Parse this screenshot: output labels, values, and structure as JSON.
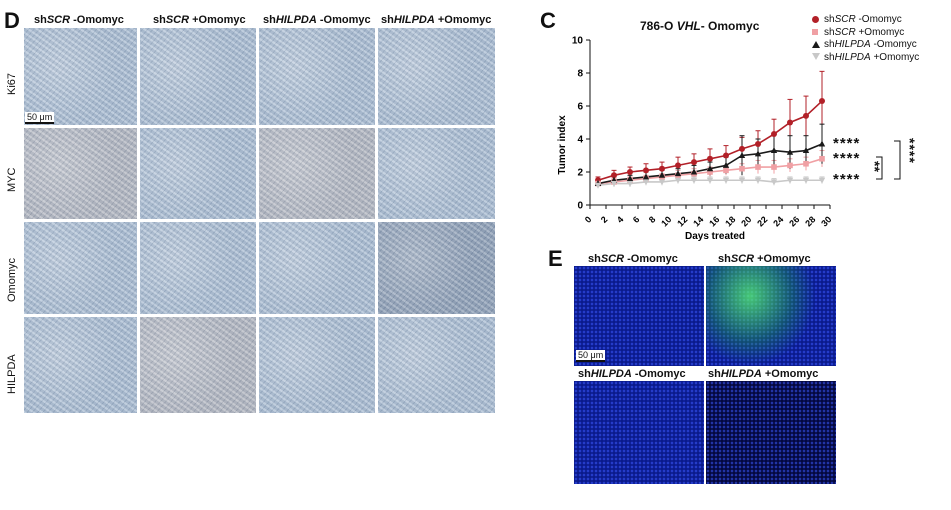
{
  "panel_d": {
    "letter": "D",
    "columns": [
      {
        "prefix": "sh",
        "gene": "SCR",
        "suffix": " -Omomyc"
      },
      {
        "prefix": "sh",
        "gene": "SCR",
        "suffix": " +Omomyc"
      },
      {
        "prefix": "sh",
        "gene": "HILPDA",
        "suffix": " -Omomyc"
      },
      {
        "prefix": "sh",
        "gene": "HILPDA",
        "suffix": " +Omomyc"
      }
    ],
    "rows": [
      "Ki67",
      "MYC",
      "Omomyc",
      "HILPDA"
    ],
    "scale_bar": "50 μm"
  },
  "panel_c": {
    "letter": "C",
    "legend": [
      {
        "prefix": "sh",
        "gene": "SCR",
        "suffix": " -Omomyc",
        "color": "#b22028",
        "marker": "circle"
      },
      {
        "prefix": "sh",
        "gene": "SCR",
        "suffix": " +Omomyc",
        "color": "#f0a0a4",
        "marker": "square"
      },
      {
        "prefix": "sh",
        "gene": "HILPDA",
        "suffix": " -Omomyc",
        "color": "#1a1a1a",
        "marker": "triangle"
      },
      {
        "prefix": "sh",
        "gene": "HILPDA",
        "suffix": " +Omomyc",
        "color": "#c8c8c8",
        "marker": "triangle-down"
      }
    ],
    "significance": [
      "****",
      "****",
      "****",
      "**",
      "****"
    ]
  },
  "chart_data": {
    "type": "line",
    "title_prefix": "786-O ",
    "title_italic": "VHL",
    "title_suffix": "- Omomyc",
    "xlabel": "Days treated",
    "ylabel": "Tumor index",
    "xlim": [
      0,
      30
    ],
    "ylim": [
      0,
      10
    ],
    "xticks": [
      0,
      2,
      4,
      6,
      8,
      10,
      12,
      14,
      16,
      18,
      20,
      22,
      24,
      26,
      28,
      30
    ],
    "yticks": [
      0,
      2,
      4,
      6,
      8,
      10
    ],
    "series": [
      {
        "name": "shSCR -Omomyc",
        "color": "#b22028",
        "x": [
          1,
          3,
          5,
          7,
          9,
          11,
          13,
          15,
          17,
          19,
          21,
          23,
          25,
          27,
          29
        ],
        "y": [
          1.5,
          1.8,
          2.0,
          2.1,
          2.2,
          2.4,
          2.6,
          2.8,
          3.0,
          3.4,
          3.7,
          4.3,
          5.0,
          5.4,
          6.3
        ],
        "err": [
          0.2,
          0.3,
          0.3,
          0.4,
          0.4,
          0.5,
          0.5,
          0.6,
          0.6,
          0.7,
          0.8,
          0.9,
          1.4,
          1.2,
          1.8
        ]
      },
      {
        "name": "shSCR +Omomyc",
        "color": "#f0a0a4",
        "x": [
          1,
          3,
          5,
          7,
          9,
          11,
          13,
          15,
          17,
          19,
          21,
          23,
          25,
          27,
          29
        ],
        "y": [
          1.3,
          1.4,
          1.5,
          1.6,
          1.7,
          1.8,
          1.9,
          2.0,
          2.1,
          2.2,
          2.3,
          2.3,
          2.4,
          2.5,
          2.8
        ],
        "err": [
          0.2,
          0.2,
          0.2,
          0.2,
          0.2,
          0.3,
          0.3,
          0.3,
          0.3,
          0.3,
          0.4,
          0.4,
          0.4,
          0.4,
          0.5
        ]
      },
      {
        "name": "shHILPDA -Omomyc",
        "color": "#1a1a1a",
        "x": [
          1,
          3,
          5,
          7,
          9,
          11,
          13,
          15,
          17,
          19,
          21,
          23,
          25,
          27,
          29
        ],
        "y": [
          1.3,
          1.5,
          1.6,
          1.7,
          1.8,
          1.9,
          2.0,
          2.2,
          2.4,
          3.0,
          3.1,
          3.3,
          3.2,
          3.3,
          3.7
        ],
        "err": [
          0.2,
          0.2,
          0.2,
          0.3,
          0.3,
          0.3,
          0.4,
          0.4,
          0.5,
          1.2,
          0.9,
          1.0,
          1.0,
          0.9,
          1.2
        ]
      },
      {
        "name": "shHILPDA +Omomyc",
        "color": "#c8c8c8",
        "x": [
          1,
          3,
          5,
          7,
          9,
          11,
          13,
          15,
          17,
          19,
          21,
          23,
          25,
          27,
          29
        ],
        "y": [
          1.2,
          1.3,
          1.3,
          1.4,
          1.4,
          1.5,
          1.5,
          1.5,
          1.5,
          1.5,
          1.5,
          1.4,
          1.5,
          1.5,
          1.5
        ],
        "err": [
          0.1,
          0.2,
          0.2,
          0.2,
          0.2,
          0.2,
          0.2,
          0.2,
          0.2,
          0.2,
          0.2,
          0.2,
          0.2,
          0.2,
          0.2
        ]
      }
    ]
  },
  "panel_e": {
    "letter": "E",
    "tiles": [
      {
        "prefix": "sh",
        "gene": "SCR",
        "suffix": " -Omomyc"
      },
      {
        "prefix": "sh",
        "gene": "SCR",
        "suffix": " +Omomyc"
      },
      {
        "prefix": "sh",
        "gene": "HILPDA",
        "suffix": " -Omomyc"
      },
      {
        "prefix": "sh",
        "gene": "HILPDA",
        "suffix": " +Omomyc"
      }
    ],
    "scale_bar": "50 μm"
  }
}
